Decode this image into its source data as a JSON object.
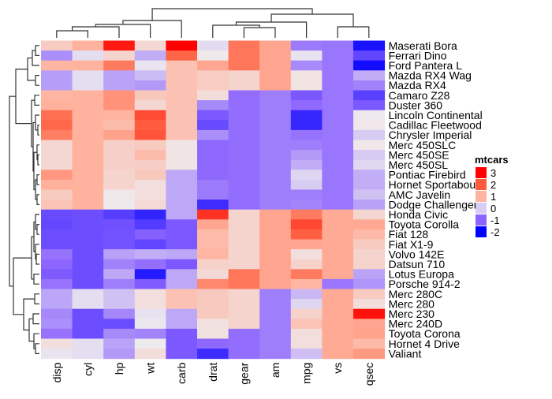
{
  "chart_data": {
    "type": "heatmap",
    "title": "",
    "columns": [
      "disp",
      "cyl",
      "hp",
      "wt",
      "carb",
      "drat",
      "gear",
      "am",
      "mpg",
      "vs",
      "qsec"
    ],
    "rows": [
      "Maserati Bora",
      "Ferrari Dino",
      "Ford Pantera L",
      "Mazda RX4 Wag",
      "Mazda RX4",
      "Camaro Z28",
      "Duster 360",
      "Lincoln Continental",
      "Cadillac Fleetwood",
      "Chrysler Imperial",
      "Merc 450SLC",
      "Merc 450SE",
      "Merc 450SL",
      "Pontiac Firebird",
      "Hornet Sportabout",
      "AMC Javelin",
      "Dodge Challenger",
      "Honda Civic",
      "Toyota Corolla",
      "Fiat 128",
      "Fiat X1-9",
      "Volvo 142E",
      "Datsun 710",
      "Lotus Europa",
      "Porsche 914-2",
      "Merc 280C",
      "Merc 280",
      "Merc 230",
      "Merc 240D",
      "Toyota Corona",
      "Hornet 4 Drive",
      "Valiant"
    ],
    "values": [
      [
        0.57,
        1.01,
        2.75,
        0.36,
        3.21,
        -0.11,
        1.78,
        1.19,
        -0.84,
        -0.87,
        -1.82
      ],
      [
        -0.69,
        -0.1,
        0.41,
        -0.46,
        1.98,
        0.04,
        1.78,
        1.19,
        -0.06,
        -0.87,
        -1.31
      ],
      [
        0.97,
        1.01,
        1.71,
        -0.05,
        0.74,
        1.17,
        1.78,
        1.19,
        -0.71,
        -0.87,
        -1.87
      ],
      [
        -0.57,
        -0.1,
        -0.54,
        -0.35,
        0.74,
        0.57,
        0.42,
        1.19,
        0.15,
        -0.87,
        -0.46
      ],
      [
        -0.57,
        -0.1,
        -0.54,
        -0.61,
        0.74,
        0.57,
        0.42,
        1.19,
        0.15,
        -0.87,
        -0.78
      ],
      [
        0.96,
        1.01,
        1.43,
        0.64,
        0.74,
        0.25,
        -0.93,
        -0.81,
        -1.13,
        -0.87,
        -1.36
      ],
      [
        1.04,
        1.01,
        1.43,
        0.36,
        0.74,
        -0.72,
        -0.93,
        -0.81,
        -0.96,
        -0.87,
        -1.12
      ],
      [
        1.85,
        1.01,
        1.0,
        2.26,
        0.74,
        -1.12,
        -0.93,
        -0.81,
        -1.61,
        -0.87,
        -0.02
      ],
      [
        1.95,
        1.01,
        0.85,
        2.08,
        0.74,
        -1.25,
        -0.93,
        -0.81,
        -1.61,
        -0.87,
        0.07
      ],
      [
        1.69,
        1.01,
        1.22,
        2.17,
        0.74,
        -0.69,
        -0.93,
        -0.81,
        -0.89,
        -0.87,
        -0.24
      ],
      [
        0.36,
        1.01,
        0.49,
        0.58,
        0.12,
        -0.98,
        -0.93,
        -0.81,
        -0.81,
        -0.87,
        0.08
      ],
      [
        0.36,
        1.01,
        0.49,
        0.87,
        0.12,
        -0.98,
        -0.93,
        -0.81,
        -0.61,
        -0.87,
        -0.25
      ],
      [
        0.36,
        1.01,
        0.49,
        0.52,
        0.12,
        -0.98,
        -0.93,
        -0.81,
        -0.46,
        -0.87,
        -0.14
      ],
      [
        1.37,
        1.01,
        0.41,
        0.64,
        -0.5,
        -0.97,
        -0.93,
        -0.81,
        -0.15,
        -0.87,
        -0.45
      ],
      [
        1.04,
        1.01,
        0.41,
        0.23,
        -0.5,
        -0.84,
        -0.93,
        -0.81,
        -0.23,
        -0.87,
        -0.46
      ],
      [
        0.59,
        1.01,
        0.05,
        0.22,
        -0.5,
        -0.84,
        -0.93,
        -0.81,
        -0.81,
        -0.87,
        -0.31
      ],
      [
        0.7,
        1.01,
        0.05,
        0.31,
        -0.5,
        -1.56,
        -0.93,
        -0.81,
        -0.76,
        -0.87,
        -0.55
      ],
      [
        -1.25,
        -1.22,
        -1.38,
        -1.64,
        -0.5,
        2.49,
        0.42,
        1.19,
        1.71,
        1.12,
        0.38
      ],
      [
        -1.29,
        -1.22,
        -1.19,
        -1.41,
        -1.12,
        1.17,
        0.42,
        1.19,
        2.29,
        1.12,
        1.15
      ],
      [
        -1.23,
        -1.22,
        -1.18,
        -1.04,
        -1.12,
        0.9,
        0.42,
        1.19,
        2.04,
        1.12,
        0.91
      ],
      [
        -1.22,
        -1.22,
        -1.18,
        -1.31,
        -1.12,
        0.9,
        0.42,
        1.19,
        1.2,
        1.12,
        0.59
      ],
      [
        -0.89,
        -1.22,
        -0.55,
        -0.45,
        -0.5,
        0.96,
        0.42,
        1.19,
        0.22,
        1.12,
        0.42
      ],
      [
        -0.99,
        -1.22,
        -0.78,
        -0.92,
        -1.12,
        0.47,
        0.42,
        1.19,
        0.45,
        1.12,
        0.43
      ],
      [
        -1.09,
        -1.22,
        -0.49,
        -1.74,
        -0.5,
        0.32,
        1.78,
        1.19,
        1.71,
        1.12,
        -0.53
      ],
      [
        -0.89,
        -1.22,
        -0.81,
        -1.1,
        -0.5,
        1.56,
        1.78,
        1.19,
        0.98,
        -0.87,
        -0.64
      ],
      [
        -0.51,
        -0.1,
        -0.31,
        0.23,
        0.74,
        0.6,
        0.42,
        -0.81,
        -0.38,
        1.12,
        0.59
      ],
      [
        -0.51,
        -0.1,
        -0.31,
        0.23,
        0.74,
        0.6,
        0.42,
        -0.81,
        -0.15,
        1.12,
        0.25
      ],
      [
        -0.73,
        -1.22,
        -0.75,
        -0.07,
        -0.5,
        0.6,
        0.42,
        -0.81,
        0.45,
        1.12,
        2.83
      ],
      [
        -0.68,
        -1.22,
        -1.24,
        -0.03,
        -0.5,
        0.18,
        0.42,
        -0.81,
        0.72,
        1.12,
        1.2
      ],
      [
        -0.89,
        -1.22,
        -0.72,
        -0.77,
        -1.12,
        0.19,
        -0.93,
        -0.81,
        0.23,
        1.12,
        1.21
      ],
      [
        0.22,
        -0.1,
        -0.54,
        0.0,
        -1.12,
        -0.97,
        -0.93,
        -0.81,
        0.22,
        1.12,
        0.89
      ],
      [
        -0.05,
        -0.1,
        -0.61,
        0.25,
        -1.12,
        -1.56,
        -0.93,
        -0.81,
        -0.33,
        1.12,
        1.33
      ]
    ],
    "color_scale": {
      "breaks": [
        -2,
        -1,
        0,
        1,
        2,
        3
      ],
      "colors": [
        "#0000ff",
        "#8c64ff",
        "#eeebee",
        "#ffb4a0",
        "#ff6446",
        "#ff0000"
      ]
    },
    "legend": {
      "title": "mtcars",
      "labels": [
        "3",
        "2",
        "1",
        "0",
        "-1",
        "-2"
      ],
      "colors": [
        "#ff0000",
        "#ff5a3c",
        "#ffb4a0",
        "#d9cdf5",
        "#8c64ff",
        "#0000ff"
      ],
      "placement": "right"
    },
    "row_dendrogram": true,
    "column_dendrogram": true
  }
}
